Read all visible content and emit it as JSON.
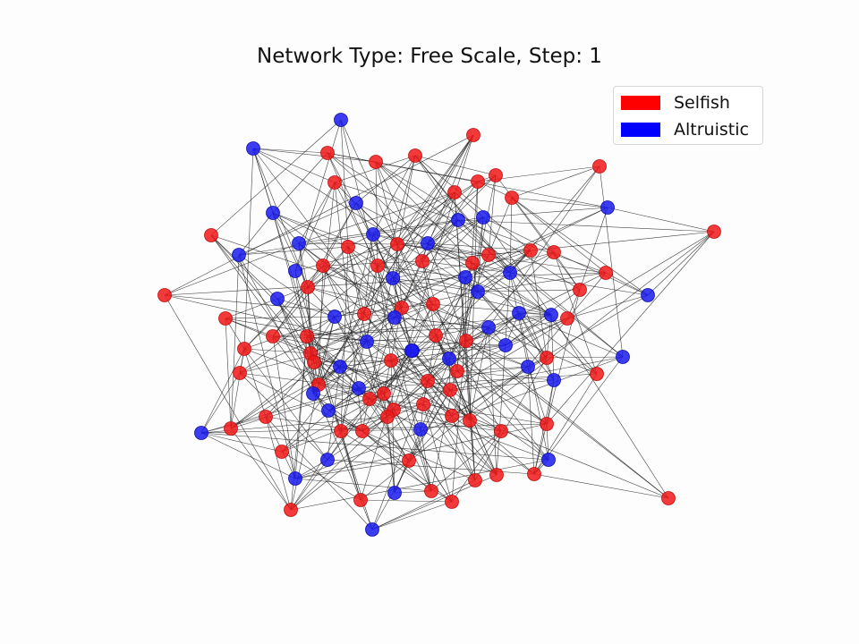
{
  "title": "Network Type: Free Scale, Step: 1",
  "legend": [
    {
      "label": "Selfish",
      "color": "#ff0000"
    },
    {
      "label": "Altruistic",
      "color": "#0000ff"
    }
  ],
  "node_colors": {
    "selfish": "#f01818",
    "altruistic": "#1a1aee",
    "edge": "#222222"
  },
  "selfish_count": 68,
  "altruistic_count": 42
}
